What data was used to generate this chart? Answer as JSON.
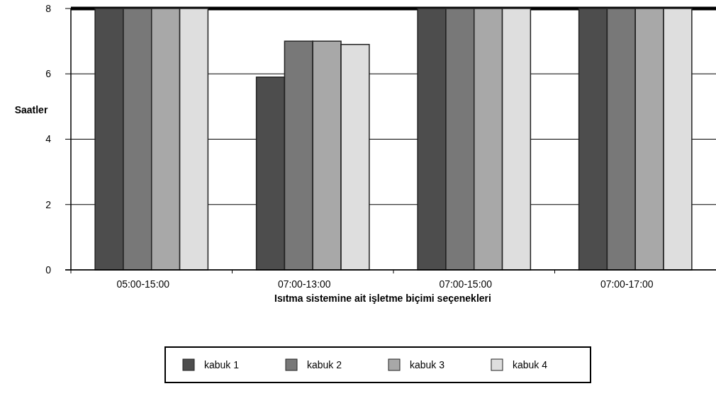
{
  "chart_data": {
    "type": "bar",
    "xlabel": "Isıtma sistemine ait işletme biçimi seçenekleri",
    "ylabel": "Saatler",
    "categories": [
      "05:00-15:00",
      "07:00-13:00",
      "07:00-15:00",
      "07:00-17:00"
    ],
    "series": [
      {
        "name": "kabuk 1",
        "color": "#4d4d4d",
        "values": [
          8,
          5.9,
          8,
          8
        ]
      },
      {
        "name": "kabuk 2",
        "color": "#787878",
        "values": [
          8,
          7,
          8,
          8
        ]
      },
      {
        "name": "kabuk 3",
        "color": "#a8a8a8",
        "values": [
          8,
          7,
          8,
          8
        ]
      },
      {
        "name": "kabuk 4",
        "color": "#dedede",
        "values": [
          8,
          6.9,
          8,
          8
        ]
      }
    ],
    "ylim": [
      0,
      8
    ],
    "yticks": [
      0,
      2,
      4,
      6,
      8
    ],
    "grid": "y",
    "legend": "bottom"
  }
}
